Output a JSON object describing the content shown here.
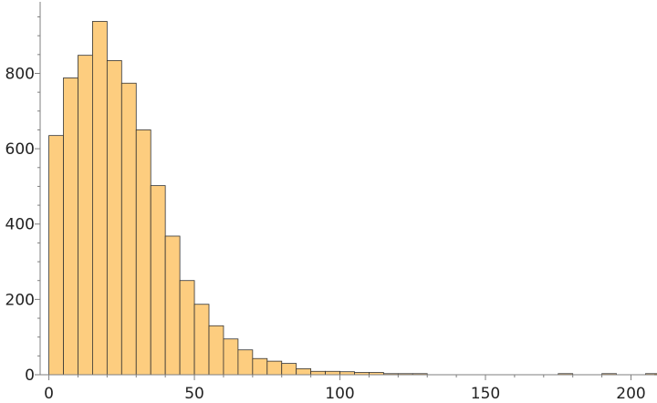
{
  "chart_data": {
    "type": "bar",
    "subtype": "histogram",
    "title": "",
    "xlabel": "",
    "ylabel": "",
    "bin_width": 5,
    "x_start": 0,
    "xlim": [
      -3,
      208
    ],
    "ylim": [
      0,
      990
    ],
    "x_ticks": [
      0,
      50,
      100,
      150,
      200
    ],
    "y_ticks": [
      0,
      200,
      400,
      600,
      800
    ],
    "x_minor_tick_step": 10,
    "y_minor_tick_step": 50,
    "grid": false,
    "legend": "none",
    "values": [
      635,
      788,
      848,
      938,
      834,
      774,
      650,
      502,
      368,
      250,
      187,
      130,
      95,
      66,
      43,
      36,
      30,
      16,
      9,
      9,
      8,
      6,
      6,
      2,
      1,
      1,
      0,
      0,
      0,
      0,
      0,
      0,
      0,
      0,
      0,
      1,
      0,
      0,
      1,
      0,
      0,
      1
    ],
    "colors": {
      "bar_fill": "#FDCD7F",
      "bar_stroke": "#333333",
      "axis": "#7F7F7F"
    }
  }
}
